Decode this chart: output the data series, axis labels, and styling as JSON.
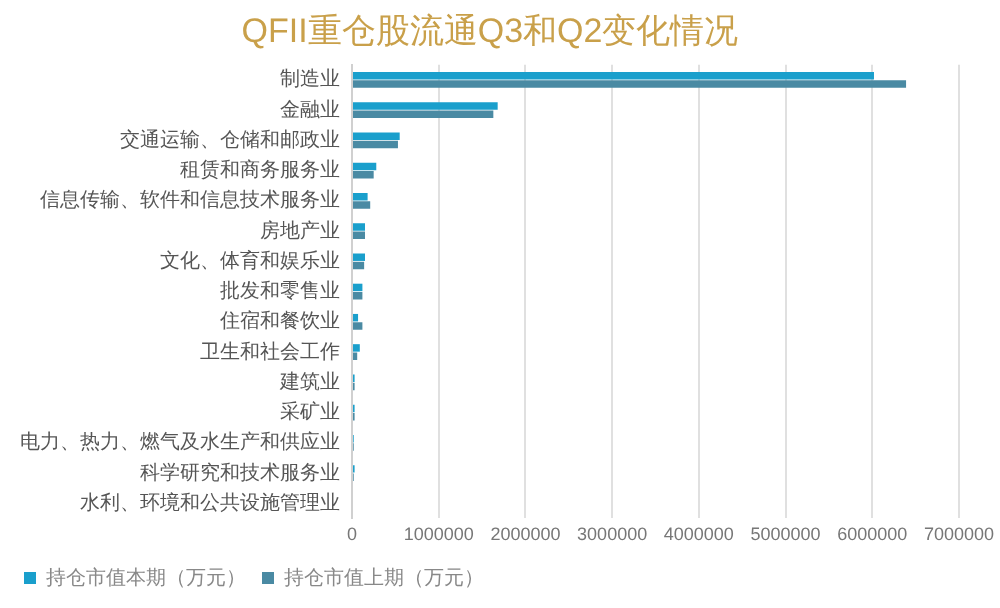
{
  "chart_data": {
    "type": "bar",
    "orientation": "horizontal",
    "title": "QFII重仓股流通Q3和Q2变化情况",
    "categories": [
      "制造业",
      "金融业",
      "交通运输、仓储和邮政业",
      "租赁和商务服务业",
      "信息传输、软件和信息技术服务业",
      "房地产业",
      "文化、体育和娱乐业",
      "批发和零售业",
      "住宿和餐饮业",
      "卫生和社会工作",
      "建筑业",
      "采矿业",
      "电力、热力、燃气及水生产和供应业",
      "科学研究和技术服务业",
      "水利、环境和公共设施管理业"
    ],
    "series": [
      {
        "name": "持仓市值本期（万元）",
        "color": "#1a9fcc",
        "values": [
          6020000,
          1680000,
          550000,
          280000,
          180000,
          150000,
          150000,
          120000,
          70000,
          90000,
          30000,
          30000,
          20000,
          30000,
          null
        ]
      },
      {
        "name": "持仓市值上期（万元）",
        "color": "#4a8aa3",
        "values": [
          6390000,
          1630000,
          530000,
          250000,
          210000,
          150000,
          140000,
          120000,
          120000,
          60000,
          30000,
          30000,
          20000,
          20000,
          null
        ]
      }
    ],
    "xlim": [
      0,
      7000000
    ],
    "xticks": [
      0,
      1000000,
      2000000,
      3000000,
      4000000,
      5000000,
      6000000,
      7000000
    ],
    "grid": "x",
    "legend": "bottom"
  }
}
